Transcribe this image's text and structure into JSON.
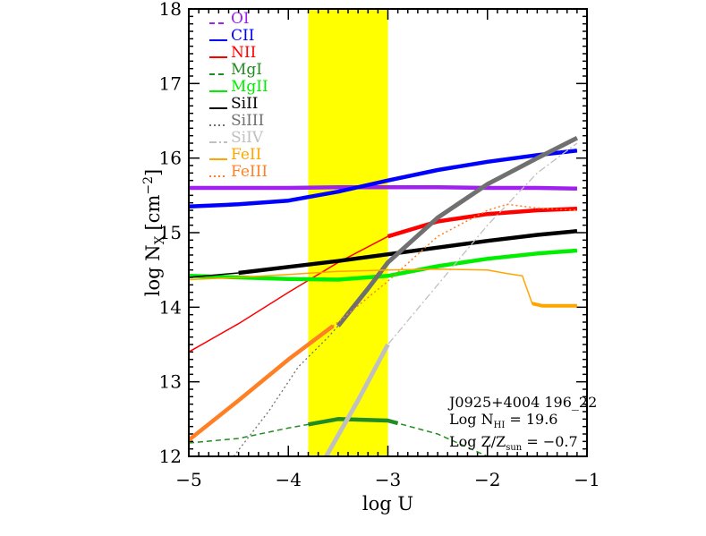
{
  "chart_data": {
    "type": "line",
    "xlabel": "log U",
    "ylabel_base": "log N",
    "ylabel_sub": "X",
    "ylabel_unit_pre": "[cm",
    "ylabel_unit_sup": "−2",
    "ylabel_unit_post": "]",
    "xlim": [
      -5,
      -1
    ],
    "ylim": [
      12,
      18
    ],
    "x_ticks": [
      -5,
      -4,
      -3,
      -2,
      -1
    ],
    "x_tick_labels": [
      "−5",
      "−4",
      "−3",
      "−2",
      "−1"
    ],
    "y_ticks": [
      12,
      13,
      14,
      15,
      16,
      17,
      18
    ],
    "y_tick_labels": [
      "12",
      "13",
      "14",
      "15",
      "16",
      "17",
      "18"
    ],
    "shaded_band": {
      "x": [
        -3.8,
        -3.0
      ],
      "color": "#ffff00"
    },
    "annotations": {
      "object": "J0925+4004 196_22",
      "nhi_pre": "Log N",
      "nhi_sub": "HI",
      "nhi_post": " = 19.6",
      "z_pre": "Log Z/Z",
      "z_sub": "sun",
      "z_post": " = −0.7"
    },
    "series": [
      {
        "name": "OI",
        "color": "#a020f0",
        "legend_dash": "6,4",
        "x": [
          -5.0,
          -4.5,
          -4.0,
          -3.5,
          -3.0,
          -2.5,
          -2.0,
          -1.5,
          -1.1
        ],
        "y": [
          15.6,
          15.6,
          15.6,
          15.61,
          15.61,
          15.61,
          15.6,
          15.6,
          15.59
        ],
        "thick": [
          -5.0,
          -1.1
        ],
        "thin_w": 3,
        "thick_w": 4.5,
        "dash": ""
      },
      {
        "name": "CII",
        "color": "#0000ff",
        "legend_dash": "",
        "x": [
          -5.0,
          -4.5,
          -4.0,
          -3.5,
          -3.0,
          -2.5,
          -2.0,
          -1.5,
          -1.1
        ],
        "y": [
          15.35,
          15.38,
          15.43,
          15.55,
          15.7,
          15.84,
          15.95,
          16.04,
          16.1
        ],
        "thick": [
          -5.0,
          -1.1
        ],
        "thin_w": 1.5,
        "thick_w": 4.5,
        "dash": ""
      },
      {
        "name": "NII",
        "color": "#ff0000",
        "legend_dash": "",
        "x": [
          -5.0,
          -4.5,
          -4.0,
          -3.5,
          -3.0,
          -2.5,
          -2.0,
          -1.5,
          -1.1
        ],
        "y": [
          13.4,
          13.78,
          14.2,
          14.6,
          14.95,
          15.15,
          15.25,
          15.3,
          15.32
        ],
        "thick": [
          -3.0,
          -1.1
        ],
        "thin_w": 1.5,
        "thick_w": 4.5,
        "dash": ""
      },
      {
        "name": "MgI",
        "color": "#228b22",
        "legend_dash": "6,4",
        "x": [
          -5.0,
          -4.5,
          -4.0,
          -3.5,
          -3.0,
          -2.5,
          -2.0
        ],
        "y": [
          12.18,
          12.24,
          12.38,
          12.5,
          12.48,
          12.3,
          12.0
        ],
        "thick": [
          -3.8,
          -2.9
        ],
        "thin_w": 1.5,
        "thick_w": 4.5,
        "dash": "6,4"
      },
      {
        "name": "MgII",
        "color": "#00ee00",
        "legend_dash": "",
        "x": [
          -5.0,
          -4.5,
          -4.0,
          -3.5,
          -3.0,
          -2.5,
          -2.0,
          -1.5,
          -1.1
        ],
        "y": [
          14.42,
          14.4,
          14.38,
          14.37,
          14.42,
          14.55,
          14.65,
          14.72,
          14.76
        ],
        "thick": [
          -5.0,
          -1.1
        ],
        "thin_w": 1.5,
        "thick_w": 4.5,
        "dash": ""
      },
      {
        "name": "SiII",
        "color": "#000000",
        "legend_dash": "",
        "x": [
          -5.0,
          -4.5,
          -4.0,
          -3.5,
          -3.0,
          -2.5,
          -2.0,
          -1.5,
          -1.1
        ],
        "y": [
          14.4,
          14.46,
          14.54,
          14.62,
          14.71,
          14.8,
          14.89,
          14.97,
          15.02
        ],
        "thick": [
          -4.5,
          -1.1
        ],
        "thin_w": 1.5,
        "thick_w": 4.5,
        "dash": ""
      },
      {
        "name": "SiIII",
        "color": "#707070",
        "legend_dash": "2,3",
        "x": [
          -4.55,
          -4.2,
          -3.9,
          -3.6,
          -3.5,
          -3.2,
          -3.0,
          -2.5,
          -2.0,
          -1.5,
          -1.1
        ],
        "y": [
          12.0,
          12.6,
          13.2,
          13.6,
          13.75,
          14.25,
          14.6,
          15.2,
          15.65,
          16.0,
          16.27
        ],
        "thick": [
          -3.5,
          -1.1
        ],
        "thin_w": 1.3,
        "thick_w": 5,
        "dash": "2,3"
      },
      {
        "name": "SiIV",
        "color": "#c0c0c0",
        "legend_dash": "8,3,2,3",
        "x": [
          -3.62,
          -3.3,
          -3.0,
          -2.5,
          -2.0,
          -1.5,
          -1.1
        ],
        "y": [
          12.0,
          12.75,
          13.5,
          14.3,
          15.1,
          15.8,
          16.2
        ],
        "thick": [
          -3.62,
          -3.0
        ],
        "thin_w": 1.3,
        "thick_w": 5,
        "dash": "8,3,2,3"
      },
      {
        "name": "FeII",
        "color": "#ffa500",
        "legend_dash": "",
        "x": [
          -5.0,
          -4.5,
          -4.0,
          -3.5,
          -3.0,
          -2.5,
          -2.0,
          -1.8,
          -1.65,
          -1.55,
          -1.45,
          -1.1
        ],
        "y": [
          14.37,
          14.4,
          14.44,
          14.48,
          14.5,
          14.51,
          14.5,
          14.45,
          14.42,
          14.05,
          14.02,
          14.02
        ],
        "thick": [
          -1.55,
          -1.1
        ],
        "thin_w": 1.5,
        "thick_w": 4,
        "dash": ""
      },
      {
        "name": "FeIII",
        "color": "#ff7f24",
        "legend_dash": "2,3",
        "x": [
          -5.0,
          -4.5,
          -4.0,
          -3.5,
          -3.0,
          -2.5,
          -2.0,
          -1.8,
          -1.5,
          -1.1
        ],
        "y": [
          12.22,
          12.75,
          13.3,
          13.8,
          14.35,
          14.95,
          15.3,
          15.38,
          15.33,
          15.3
        ],
        "thick": [
          -5.0,
          -3.55
        ],
        "thin_w": 1.5,
        "thick_w": 4.5,
        "dash": "2,3"
      }
    ]
  }
}
